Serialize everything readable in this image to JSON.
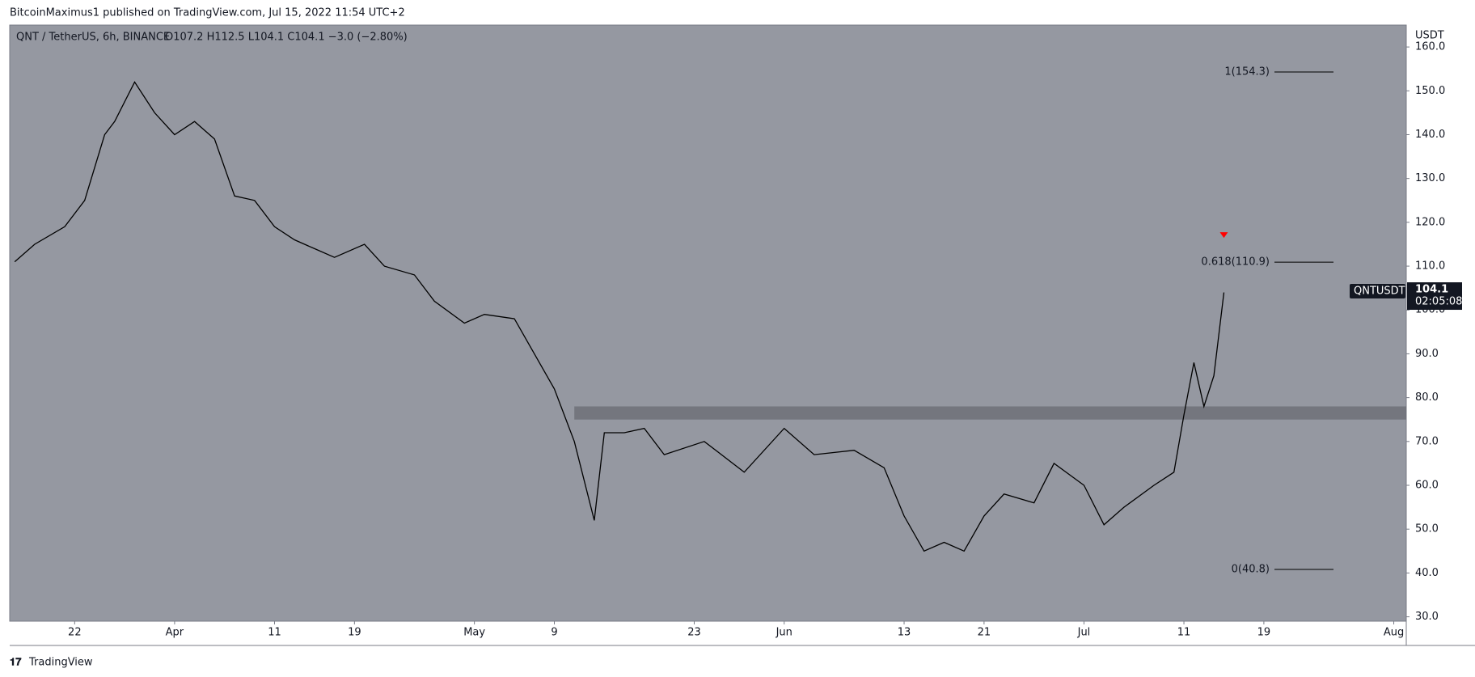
{
  "header": "BitcoinMaximus1 published on TradingView.com, Jul 15, 2022 11:54 UTC+2",
  "footer": "TradingView",
  "chart_data": {
    "type": "line",
    "title": "QNT / TetherUS, 6h, BINANCE",
    "ohlc_text": "O107.2 H112.5 L104.1 C104.1 −3.0 (−2.80%)",
    "y_axis_label": "USDT",
    "x": [
      "2022-03-16",
      "2022-03-18",
      "2022-03-21",
      "2022-03-23",
      "2022-03-25",
      "2022-03-26",
      "2022-03-28",
      "2022-03-30",
      "2022-04-01",
      "2022-04-03",
      "2022-04-05",
      "2022-04-07",
      "2022-04-09",
      "2022-04-11",
      "2022-04-13",
      "2022-04-15",
      "2022-04-17",
      "2022-04-20",
      "2022-04-22",
      "2022-04-25",
      "2022-04-27",
      "2022-04-30",
      "2022-05-02",
      "2022-05-05",
      "2022-05-07",
      "2022-05-09",
      "2022-05-11",
      "2022-05-13",
      "2022-05-14",
      "2022-05-16",
      "2022-05-18",
      "2022-05-20",
      "2022-05-24",
      "2022-05-28",
      "2022-06-01",
      "2022-06-04",
      "2022-06-08",
      "2022-06-11",
      "2022-06-13",
      "2022-06-15",
      "2022-06-17",
      "2022-06-19",
      "2022-06-21",
      "2022-06-23",
      "2022-06-26",
      "2022-06-28",
      "2022-07-01",
      "2022-07-03",
      "2022-07-05",
      "2022-07-08",
      "2022-07-10",
      "2022-07-11",
      "2022-07-12",
      "2022-07-13",
      "2022-07-14",
      "2022-07-15"
    ],
    "series": [
      {
        "name": "QNTUSDT",
        "color": "#000000",
        "values": [
          111,
          115,
          119,
          125,
          140,
          143,
          152,
          145,
          140,
          143,
          139,
          126,
          125,
          119,
          116,
          114,
          112,
          115,
          110,
          108,
          102,
          97,
          99,
          98,
          90,
          82,
          70,
          52,
          72,
          72,
          73,
          67,
          70,
          63,
          73,
          67,
          68,
          64,
          53,
          45,
          47,
          45,
          53,
          58,
          56,
          65,
          60,
          51,
          55,
          60,
          63,
          76,
          88,
          78,
          85,
          104
        ]
      }
    ],
    "last_price": {
      "symbol": "QNTUSDT",
      "value": 104.1,
      "countdown": "02:05:08"
    },
    "fib_levels": [
      {
        "value": 154.3,
        "label": "1(154.3)"
      },
      {
        "value": 110.9,
        "label": "0.618(110.9)"
      },
      {
        "value": 40.8,
        "label": "0(40.8)"
      }
    ],
    "zone": {
      "from": "2022-05-11",
      "low": 75,
      "high": 78
    },
    "marker": {
      "x": "2022-07-15",
      "value": 117,
      "color": "#ff0000"
    },
    "xlim": [
      "2022-03-15T12:00",
      "2022-08-02T06:00"
    ],
    "xticks": [
      {
        "value": "2022-03-22",
        "label": "22"
      },
      {
        "value": "2022-04-01",
        "label": "Apr"
      },
      {
        "value": "2022-04-11",
        "label": "11"
      },
      {
        "value": "2022-04-19",
        "label": "19"
      },
      {
        "value": "2022-05-01",
        "label": "May"
      },
      {
        "value": "2022-05-09",
        "label": "9"
      },
      {
        "value": "2022-05-23",
        "label": "23"
      },
      {
        "value": "2022-06-01",
        "label": "Jun"
      },
      {
        "value": "2022-06-13",
        "label": "13"
      },
      {
        "value": "2022-06-21",
        "label": "21"
      },
      {
        "value": "2022-07-01",
        "label": "Jul"
      },
      {
        "value": "2022-07-11",
        "label": "11"
      },
      {
        "value": "2022-07-19",
        "label": "19"
      },
      {
        "value": "2022-08-01",
        "label": "Aug"
      }
    ],
    "ylim": [
      29,
      165
    ],
    "yticks": [
      {
        "value": 30,
        "label": "30.0"
      },
      {
        "value": 40,
        "label": "40.0"
      },
      {
        "value": 50,
        "label": "50.0"
      },
      {
        "value": 60,
        "label": "60.0"
      },
      {
        "value": 70,
        "label": "70.0"
      },
      {
        "value": 80,
        "label": "80.0"
      },
      {
        "value": 90,
        "label": "90.0"
      },
      {
        "value": 100,
        "label": "100.0"
      },
      {
        "value": 110,
        "label": "110.0"
      },
      {
        "value": 120,
        "label": "120.0"
      },
      {
        "value": 130,
        "label": "130.0"
      },
      {
        "value": 140,
        "label": "140.0"
      },
      {
        "value": 150,
        "label": "150.0"
      },
      {
        "value": 160,
        "label": "160.0"
      }
    ],
    "grid": false,
    "background": "#9598a1"
  }
}
